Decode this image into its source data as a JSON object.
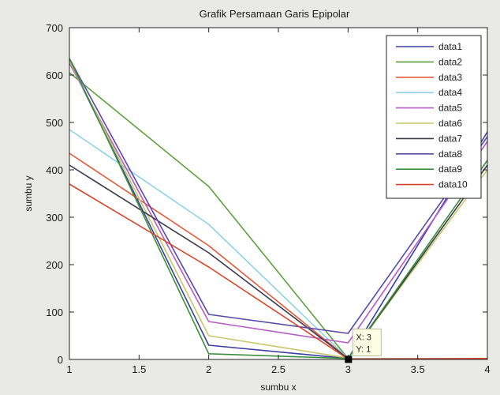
{
  "chart_data": {
    "type": "line",
    "title": "Grafik Persamaan Garis Epipolar",
    "xlabel": "sumbu x",
    "ylabel": "sumbu y",
    "xlim": [
      1,
      4
    ],
    "ylim": [
      0,
      700
    ],
    "xticks": [
      "1",
      "1.5",
      "2",
      "2.5",
      "3",
      "3.5",
      "4"
    ],
    "yticks": [
      "0",
      "100",
      "200",
      "300",
      "400",
      "500",
      "600",
      "700"
    ],
    "x": [
      1,
      2,
      3,
      4
    ],
    "grid": false,
    "legend_position": "top-right",
    "series": [
      {
        "name": "data1",
        "color": "#3b3f9e",
        "values": [
          630,
          30,
          2,
          480
        ]
      },
      {
        "name": "data2",
        "color": "#5e9e3c",
        "values": [
          605,
          365,
          2,
          2
        ]
      },
      {
        "name": "data3",
        "color": "#e35a3a",
        "values": [
          435,
          240,
          2,
          2
        ]
      },
      {
        "name": "data4",
        "color": "#8fd2e6",
        "values": [
          485,
          285,
          2,
          2
        ]
      },
      {
        "name": "data5",
        "color": "#b65bc4",
        "values": [
          625,
          80,
          35,
          460
        ]
      },
      {
        "name": "data6",
        "color": "#c9c56a",
        "values": [
          630,
          50,
          3,
          400
        ]
      },
      {
        "name": "data7",
        "color": "#3a3a4a",
        "values": [
          410,
          225,
          2,
          410
        ]
      },
      {
        "name": "data8",
        "color": "#5a48a8",
        "values": [
          635,
          95,
          55,
          470
        ]
      },
      {
        "name": "data9",
        "color": "#3b8f3c",
        "values": [
          635,
          12,
          2,
          420
        ]
      },
      {
        "name": "data10",
        "color": "#d6452a",
        "values": [
          370,
          195,
          1,
          2
        ]
      }
    ],
    "datatip": {
      "x": 3,
      "y": 1,
      "x_label": "X: 3",
      "y_label": "Y: 1"
    }
  }
}
